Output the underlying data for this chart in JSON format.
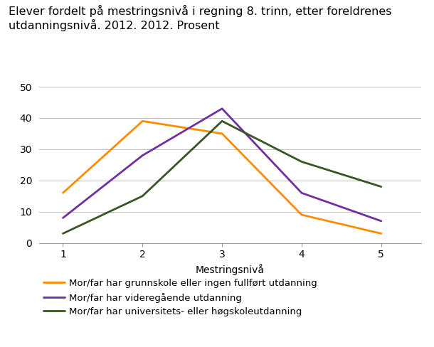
{
  "title": "Elever fordelt på mestringsnivå i regning 8. trinn, etter foreldrenes\nutdanningsnivå. 2012. 2012. Prosent",
  "xlabel": "Mestringsnivå",
  "x": [
    1,
    2,
    3,
    4,
    5
  ],
  "series": [
    {
      "label": "Mor/far har grunnskole eller ingen fullført utdanning",
      "values": [
        16,
        39,
        35,
        9,
        3
      ],
      "color": "#FF8C00"
    },
    {
      "label": "Mor/far har videregående utdanning",
      "values": [
        8,
        28,
        43,
        16,
        7
      ],
      "color": "#7030A0"
    },
    {
      "label": "Mor/far har universitets- eller høgskoleutdanning",
      "values": [
        3,
        15,
        39,
        26,
        18
      ],
      "color": "#375623"
    }
  ],
  "ylim": [
    0,
    50
  ],
  "yticks": [
    0,
    10,
    20,
    30,
    40,
    50
  ],
  "xticks": [
    1,
    2,
    3,
    4,
    5
  ],
  "grid_color": "#C0C0C0",
  "background_color": "#FFFFFF",
  "title_fontsize": 11.5,
  "axis_label_fontsize": 10,
  "legend_fontsize": 9.5,
  "tick_fontsize": 10,
  "line_width": 2.0
}
